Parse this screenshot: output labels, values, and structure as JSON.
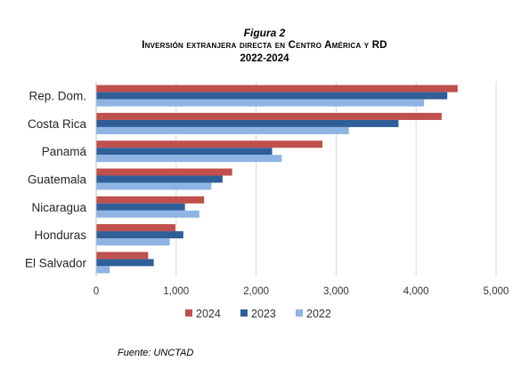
{
  "header": {
    "figure_label": "Figura 2",
    "title": "Inversión extranjera directa en Centro América y RD",
    "years": "2022-2024"
  },
  "source": "Fuente: UNCTAD",
  "chart_data": {
    "type": "bar",
    "orientation": "horizontal",
    "categories": [
      "Rep. Dom.",
      "Costa Rica",
      "Panamá",
      "Guatemala",
      "Nicaragua",
      "Honduras",
      "El Salvador"
    ],
    "series": [
      {
        "name": "2024",
        "color": "#C0504D",
        "values": [
          4520,
          4320,
          2830,
          1700,
          1350,
          990,
          650
        ]
      },
      {
        "name": "2023",
        "color": "#2F5F98",
        "values": [
          4390,
          3780,
          2200,
          1580,
          1110,
          1090,
          720
        ]
      },
      {
        "name": "2022",
        "color": "#8FB4E3",
        "values": [
          4100,
          3160,
          2320,
          1440,
          1290,
          920,
          170
        ]
      }
    ],
    "xlim": [
      0,
      5000
    ],
    "xticks": [
      "0",
      "1,000",
      "2,000",
      "3,000",
      "4,000",
      "5,000"
    ],
    "grid": true,
    "legend_position": "bottom"
  }
}
